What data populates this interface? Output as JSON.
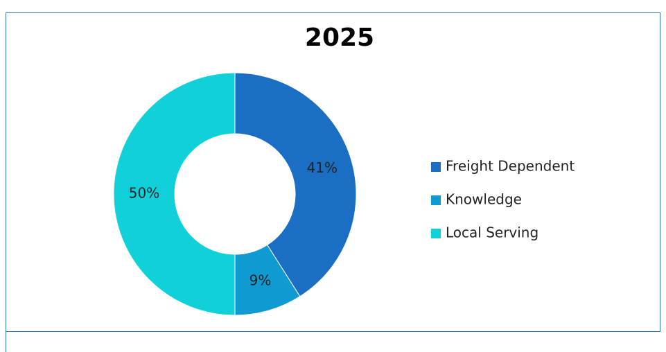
{
  "chart_data": {
    "type": "pie",
    "title": "2025",
    "categories": [
      "Freight Dependent",
      "Knowledge",
      "Local Serving"
    ],
    "values": [
      41,
      9,
      50
    ],
    "value_labels": [
      "41%",
      "9%",
      "50%"
    ],
    "colors": [
      "#1a6fc4",
      "#0f9ad2",
      "#10d0da"
    ],
    "donut": true,
    "legend": "right"
  }
}
